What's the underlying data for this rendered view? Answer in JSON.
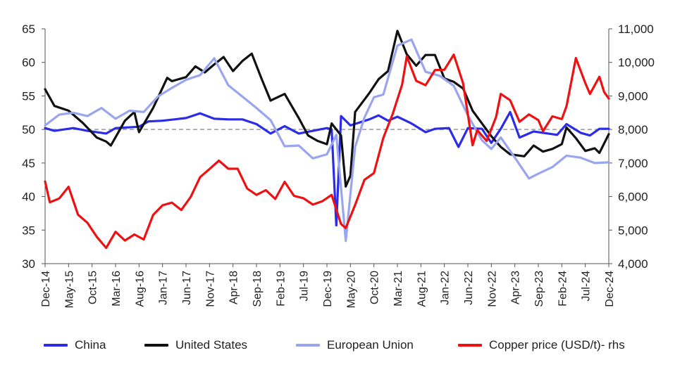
{
  "chart_data": {
    "type": "line",
    "title": "",
    "xlabel": "",
    "ylabel": "",
    "left_axis": {
      "ylim": [
        30,
        65
      ],
      "ticks": [
        "30",
        "35",
        "40",
        "45",
        "50",
        "55",
        "60",
        "65"
      ]
    },
    "right_axis": {
      "ylim": [
        4000,
        11000
      ],
      "ticks": [
        "4,000",
        "5,000",
        "6,000",
        "7,000",
        "8,000",
        "9,000",
        "10,000",
        "11,000"
      ]
    },
    "reference_line": {
      "value": 50,
      "style": "dashed",
      "color": "#999999"
    },
    "x_tick_labels": [
      "Dec-14",
      "May-15",
      "Oct-15",
      "Mar-16",
      "Aug-16",
      "Jan-17",
      "Jun-17",
      "Nov-17",
      "Apr-18",
      "Sep-18",
      "Feb-19",
      "Jul-19",
      "Dec-19",
      "May-20",
      "Oct-20",
      "Mar-21",
      "Aug-21",
      "Jan-22",
      "Jun-22",
      "Nov-22",
      "Apr-23",
      "Sep-23",
      "Feb-24",
      "Jul-24",
      "Dec-24"
    ],
    "x_start": "2014-12",
    "x_end": "2024-12",
    "legend_position": "bottom",
    "grid": false,
    "series": [
      {
        "name": "China",
        "axis": "left",
        "color": "#2B2BE8",
        "keyframes": [
          [
            "2014-12",
            50.2
          ],
          [
            "2015-02",
            49.8
          ],
          [
            "2015-06",
            50.2
          ],
          [
            "2015-09",
            49.8
          ],
          [
            "2016-01",
            49.4
          ],
          [
            "2016-03",
            50.2
          ],
          [
            "2016-08",
            50.4
          ],
          [
            "2016-10",
            51.2
          ],
          [
            "2017-01",
            51.3
          ],
          [
            "2017-06",
            51.7
          ],
          [
            "2017-09",
            52.4
          ],
          [
            "2017-12",
            51.6
          ],
          [
            "2018-03",
            51.5
          ],
          [
            "2018-06",
            51.5
          ],
          [
            "2018-09",
            50.8
          ],
          [
            "2018-12",
            49.4
          ],
          [
            "2019-03",
            50.5
          ],
          [
            "2019-06",
            49.4
          ],
          [
            "2019-09",
            49.8
          ],
          [
            "2019-12",
            50.2
          ],
          [
            "2020-01",
            50.0
          ],
          [
            "2020-02",
            35.7
          ],
          [
            "2020-03",
            52.0
          ],
          [
            "2020-05",
            50.6
          ],
          [
            "2020-09",
            51.5
          ],
          [
            "2020-11",
            52.1
          ],
          [
            "2021-01",
            51.3
          ],
          [
            "2021-03",
            51.9
          ],
          [
            "2021-06",
            50.9
          ],
          [
            "2021-09",
            49.6
          ],
          [
            "2021-11",
            50.1
          ],
          [
            "2022-02",
            50.2
          ],
          [
            "2022-04",
            47.4
          ],
          [
            "2022-06",
            50.2
          ],
          [
            "2022-09",
            50.1
          ],
          [
            "2022-11",
            48.0
          ],
          [
            "2023-01",
            50.1
          ],
          [
            "2023-03",
            52.6
          ],
          [
            "2023-05",
            48.8
          ],
          [
            "2023-08",
            49.7
          ],
          [
            "2023-10",
            49.5
          ],
          [
            "2024-01",
            49.2
          ],
          [
            "2024-03",
            50.8
          ],
          [
            "2024-06",
            49.5
          ],
          [
            "2024-08",
            49.1
          ],
          [
            "2024-10",
            50.1
          ],
          [
            "2024-12",
            50.1
          ]
        ]
      },
      {
        "name": "United States",
        "axis": "left",
        "color": "#111111",
        "keyframes": [
          [
            "2014-12",
            56.0
          ],
          [
            "2015-02",
            53.5
          ],
          [
            "2015-05",
            52.8
          ],
          [
            "2015-08",
            51.0
          ],
          [
            "2015-11",
            48.8
          ],
          [
            "2016-01",
            48.2
          ],
          [
            "2016-02",
            47.6
          ],
          [
            "2016-05",
            51.3
          ],
          [
            "2016-07",
            52.6
          ],
          [
            "2016-08",
            49.6
          ],
          [
            "2016-11",
            53.2
          ],
          [
            "2017-02",
            57.7
          ],
          [
            "2017-03",
            57.2
          ],
          [
            "2017-06",
            57.8
          ],
          [
            "2017-08",
            59.4
          ],
          [
            "2017-10",
            58.5
          ],
          [
            "2017-12",
            59.7
          ],
          [
            "2018-02",
            60.8
          ],
          [
            "2018-04",
            58.7
          ],
          [
            "2018-06",
            60.2
          ],
          [
            "2018-08",
            61.3
          ],
          [
            "2018-10",
            57.7
          ],
          [
            "2018-12",
            54.3
          ],
          [
            "2019-03",
            55.3
          ],
          [
            "2019-06",
            51.7
          ],
          [
            "2019-08",
            49.1
          ],
          [
            "2019-10",
            48.3
          ],
          [
            "2019-12",
            47.8
          ],
          [
            "2020-01",
            50.9
          ],
          [
            "2020-03",
            49.1
          ],
          [
            "2020-04",
            41.5
          ],
          [
            "2020-05",
            43.1
          ],
          [
            "2020-06",
            52.6
          ],
          [
            "2020-09",
            55.4
          ],
          [
            "2020-11",
            57.5
          ],
          [
            "2021-01",
            58.7
          ],
          [
            "2021-03",
            64.7
          ],
          [
            "2021-05",
            61.2
          ],
          [
            "2021-07",
            59.5
          ],
          [
            "2021-09",
            61.1
          ],
          [
            "2021-11",
            61.1
          ],
          [
            "2022-01",
            57.6
          ],
          [
            "2022-03",
            57.1
          ],
          [
            "2022-05",
            56.1
          ],
          [
            "2022-07",
            52.8
          ],
          [
            "2022-09",
            50.9
          ],
          [
            "2022-11",
            49.0
          ],
          [
            "2023-01",
            47.4
          ],
          [
            "2023-03",
            46.3
          ],
          [
            "2023-06",
            46.0
          ],
          [
            "2023-08",
            47.6
          ],
          [
            "2023-10",
            46.7
          ],
          [
            "2023-12",
            47.1
          ],
          [
            "2024-02",
            47.8
          ],
          [
            "2024-03",
            50.3
          ],
          [
            "2024-05",
            48.7
          ],
          [
            "2024-07",
            46.8
          ],
          [
            "2024-09",
            47.2
          ],
          [
            "2024-10",
            46.5
          ],
          [
            "2024-12",
            49.3
          ]
        ]
      },
      {
        "name": "European Union",
        "axis": "left",
        "color": "#9AA5F0",
        "keyframes": [
          [
            "2014-12",
            50.6
          ],
          [
            "2015-03",
            52.2
          ],
          [
            "2015-06",
            52.5
          ],
          [
            "2015-09",
            52.0
          ],
          [
            "2015-12",
            53.2
          ],
          [
            "2016-03",
            51.6
          ],
          [
            "2016-06",
            52.8
          ],
          [
            "2016-09",
            52.6
          ],
          [
            "2016-12",
            54.9
          ],
          [
            "2017-03",
            56.2
          ],
          [
            "2017-06",
            57.4
          ],
          [
            "2017-09",
            58.1
          ],
          [
            "2017-12",
            60.6
          ],
          [
            "2018-03",
            56.6
          ],
          [
            "2018-06",
            54.9
          ],
          [
            "2018-09",
            53.2
          ],
          [
            "2018-12",
            51.4
          ],
          [
            "2019-03",
            47.5
          ],
          [
            "2019-06",
            47.6
          ],
          [
            "2019-09",
            45.7
          ],
          [
            "2019-12",
            46.3
          ],
          [
            "2020-02",
            49.2
          ],
          [
            "2020-04",
            33.4
          ],
          [
            "2020-06",
            47.4
          ],
          [
            "2020-08",
            51.8
          ],
          [
            "2020-10",
            54.8
          ],
          [
            "2020-12",
            55.2
          ],
          [
            "2021-03",
            62.5
          ],
          [
            "2021-06",
            63.4
          ],
          [
            "2021-09",
            58.6
          ],
          [
            "2021-12",
            58.0
          ],
          [
            "2022-03",
            56.5
          ],
          [
            "2022-06",
            52.1
          ],
          [
            "2022-09",
            48.4
          ],
          [
            "2022-11",
            47.1
          ],
          [
            "2023-01",
            48.8
          ],
          [
            "2023-04",
            45.8
          ],
          [
            "2023-07",
            42.7
          ],
          [
            "2023-09",
            43.4
          ],
          [
            "2023-12",
            44.4
          ],
          [
            "2024-03",
            46.1
          ],
          [
            "2024-06",
            45.8
          ],
          [
            "2024-09",
            45.0
          ],
          [
            "2024-12",
            45.1
          ]
        ]
      },
      {
        "name": "Copper price (USD/t)- rhs",
        "axis": "right",
        "color": "#EE1111",
        "keyframes": [
          [
            "2014-12",
            6450
          ],
          [
            "2015-01",
            5830
          ],
          [
            "2015-03",
            5940
          ],
          [
            "2015-05",
            6290
          ],
          [
            "2015-07",
            5460
          ],
          [
            "2015-09",
            5220
          ],
          [
            "2015-11",
            4800
          ],
          [
            "2016-01",
            4470
          ],
          [
            "2016-03",
            4950
          ],
          [
            "2016-05",
            4690
          ],
          [
            "2016-07",
            4870
          ],
          [
            "2016-09",
            4720
          ],
          [
            "2016-11",
            5450
          ],
          [
            "2017-01",
            5740
          ],
          [
            "2017-03",
            5820
          ],
          [
            "2017-05",
            5600
          ],
          [
            "2017-07",
            5990
          ],
          [
            "2017-09",
            6580
          ],
          [
            "2017-11",
            6820
          ],
          [
            "2018-01",
            7070
          ],
          [
            "2018-03",
            6830
          ],
          [
            "2018-05",
            6830
          ],
          [
            "2018-07",
            6240
          ],
          [
            "2018-09",
            6050
          ],
          [
            "2018-11",
            6190
          ],
          [
            "2019-01",
            5930
          ],
          [
            "2019-03",
            6440
          ],
          [
            "2019-05",
            6020
          ],
          [
            "2019-07",
            5950
          ],
          [
            "2019-09",
            5760
          ],
          [
            "2019-11",
            5860
          ],
          [
            "2020-01",
            6050
          ],
          [
            "2020-03",
            5180
          ],
          [
            "2020-04",
            5060
          ],
          [
            "2020-06",
            5750
          ],
          [
            "2020-08",
            6500
          ],
          [
            "2020-10",
            6700
          ],
          [
            "2020-12",
            7750
          ],
          [
            "2021-02",
            8460
          ],
          [
            "2021-04",
            9340
          ],
          [
            "2021-05",
            10180
          ],
          [
            "2021-07",
            9450
          ],
          [
            "2021-09",
            9320
          ],
          [
            "2021-11",
            9770
          ],
          [
            "2022-01",
            9780
          ],
          [
            "2022-03",
            10230
          ],
          [
            "2022-05",
            9370
          ],
          [
            "2022-07",
            7530
          ],
          [
            "2022-08",
            7980
          ],
          [
            "2022-10",
            7660
          ],
          [
            "2022-12",
            8370
          ],
          [
            "2023-01",
            9060
          ],
          [
            "2023-03",
            8870
          ],
          [
            "2023-05",
            8230
          ],
          [
            "2023-07",
            8450
          ],
          [
            "2023-09",
            8280
          ],
          [
            "2023-10",
            7950
          ],
          [
            "2023-12",
            8390
          ],
          [
            "2024-02",
            8310
          ],
          [
            "2024-03",
            8690
          ],
          [
            "2024-05",
            10130
          ],
          [
            "2024-07",
            9380
          ],
          [
            "2024-08",
            9060
          ],
          [
            "2024-10",
            9570
          ],
          [
            "2024-11",
            9120
          ],
          [
            "2024-12",
            8920
          ]
        ]
      }
    ]
  }
}
